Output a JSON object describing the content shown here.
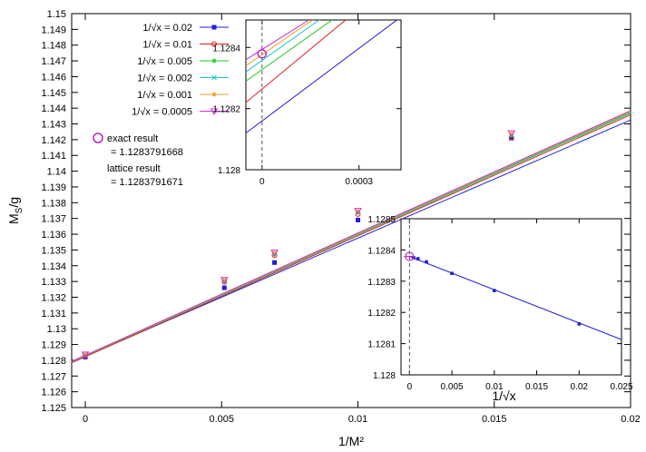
{
  "chart_data": [
    {
      "type": "line",
      "xlabel": "1/M²",
      "ylabel": "MS/g",
      "xlim": [
        -0.0005,
        0.02
      ],
      "ylim": [
        1.125,
        1.15
      ],
      "xticks": [
        0,
        0.005,
        0.01,
        0.015,
        0.02
      ],
      "xtick_labels": [
        "0",
        "0.005",
        "0.01",
        "0.015",
        "0.02"
      ],
      "yticks": [
        1.125,
        1.126,
        1.127,
        1.128,
        1.129,
        1.13,
        1.131,
        1.132,
        1.133,
        1.134,
        1.135,
        1.136,
        1.137,
        1.138,
        1.139,
        1.14,
        1.141,
        1.142,
        1.143,
        1.144,
        1.145,
        1.146,
        1.147,
        1.148,
        1.149,
        1.15
      ],
      "ytick_labels": [
        "1.125",
        "1.126",
        "1.127",
        "1.128",
        "1.129",
        "1.13",
        "1.131",
        "1.132",
        "1.133",
        "1.134",
        "1.135",
        "1.136",
        "1.137",
        "1.138",
        "1.139",
        "1.14",
        "1.141",
        "1.142",
        "1.143",
        "1.144",
        "1.145",
        "1.146",
        "1.147",
        "1.148",
        "1.149",
        "1.15"
      ],
      "legend_position": "top-left",
      "series": [
        {
          "name": "1/√x = 0.02",
          "color": "#1f1fd6",
          "marker": "square",
          "x": [
            0,
            0.0051,
            0.00694,
            0.01,
            0.01563
          ],
          "y": [
            1.1282,
            1.1326,
            1.1342,
            1.1369,
            1.1421
          ],
          "line_x": [
            -0.0005,
            0.02
          ],
          "line_y": [
            1.12788,
            1.14325
          ]
        },
        {
          "name": "1/√x = 0.01",
          "color": "#e01c1c",
          "marker": "circle",
          "x": [
            0,
            0.0051,
            0.00694,
            0.01,
            0.01563
          ],
          "y": [
            1.12827,
            1.13297,
            1.13467,
            1.13728,
            1.14213
          ],
          "line_x": [
            -0.0005,
            0.02
          ],
          "line_y": [
            1.12784,
            1.14358
          ]
        },
        {
          "name": "1/√x = 0.005",
          "color": "#1ec91e",
          "marker": "star",
          "x": [
            0,
            0.0051,
            0.00694,
            0.01,
            0.01563
          ],
          "y": [
            1.12832,
            1.133,
            1.13472,
            1.13737,
            1.14225
          ],
          "line_x": [
            -0.0005,
            0.02
          ],
          "line_y": [
            1.12789,
            1.14368
          ]
        },
        {
          "name": "1/√x = 0.002",
          "color": "#17c8d0",
          "marker": "x",
          "x": [
            0,
            0.0051,
            0.00694,
            0.01,
            0.01563
          ],
          "y": [
            1.12835,
            1.13305,
            1.13477,
            1.13742,
            1.14232
          ],
          "line_x": [
            -0.0005,
            0.02
          ],
          "line_y": [
            1.12791,
            1.14374
          ]
        },
        {
          "name": "1/√x = 0.001",
          "color": "#f0a020",
          "marker": "star",
          "x": [
            0,
            0.0051,
            0.00694,
            0.01,
            0.01563
          ],
          "y": [
            1.12836,
            1.13308,
            1.1348,
            1.13745,
            1.14236
          ],
          "line_x": [
            -0.0005,
            0.02
          ],
          "line_y": [
            1.12792,
            1.14379
          ]
        },
        {
          "name": "1/√x = 0.0005",
          "color": "#d030d0",
          "marker": "triangle-down",
          "x": [
            0,
            0.0051,
            0.00694,
            0.01,
            0.01563
          ],
          "y": [
            1.12838,
            1.13311,
            1.13484,
            1.13749,
            1.14242
          ],
          "line_x": [
            -0.0005,
            0.02
          ],
          "line_y": [
            1.12793,
            1.14384
          ]
        }
      ],
      "exact_point": {
        "x": 0,
        "y": 1.1283791668,
        "color": "#c020c0",
        "marker": "open-circle"
      },
      "annotations": [
        {
          "label": "exact result",
          "value": "= 1.1283791668"
        },
        {
          "label": "lattice result",
          "value": "= 1.1283791671"
        }
      ]
    },
    {
      "type": "line",
      "role": "inset-zoom",
      "xlim": [
        -5e-05,
        0.00043
      ],
      "ylim": [
        1.128,
        1.12849
      ],
      "xticks": [
        0,
        0.0003
      ],
      "xtick_labels": [
        "0",
        "0.0003"
      ],
      "yticks": [
        1.128,
        1.1282,
        1.1284
      ],
      "ytick_labels": [
        "1.128",
        "1.1282",
        "1.1284"
      ],
      "series": [
        {
          "name": "1/√x = 0.02",
          "color": "#1f1fd6",
          "line_x": [
            -5e-05,
            0.00043
          ],
          "line_y": [
            1.12812,
            1.1285
          ]
        },
        {
          "name": "1/√x = 0.01",
          "color": "#e01c1c",
          "line_x": [
            -5e-05,
            0.00027
          ],
          "line_y": [
            1.12822,
            1.1285
          ]
        },
        {
          "name": "1/√x = 0.005",
          "color": "#1ec91e",
          "line_x": [
            -5e-05,
            0.00023
          ],
          "line_y": [
            1.12829,
            1.1285
          ]
        },
        {
          "name": "1/√x = 0.002",
          "color": "#17c8d0",
          "line_x": [
            -5e-05,
            0.00019
          ],
          "line_y": [
            1.12832,
            1.1285
          ]
        },
        {
          "name": "1/√x = 0.001",
          "color": "#f0a020",
          "line_x": [
            -5e-05,
            0.00017
          ],
          "line_y": [
            1.12834,
            1.1285
          ]
        },
        {
          "name": "1/√x = 0.0005",
          "color": "#d030d0",
          "line_x": [
            -5e-05,
            0.00016
          ],
          "line_y": [
            1.12836,
            1.1285
          ]
        }
      ],
      "exact_point": {
        "x": 0,
        "y": 1.1283791668
      }
    },
    {
      "type": "line",
      "role": "inset-extrapolation",
      "xlabel": "1/√x",
      "xlim": [
        -0.001,
        0.025
      ],
      "ylim": [
        1.128,
        1.1285
      ],
      "xticks": [
        0,
        0.005,
        0.01,
        0.015,
        0.02,
        0.025
      ],
      "xtick_labels": [
        "0",
        "0.005",
        "0.01",
        "0.015",
        "0.02",
        "0.025"
      ],
      "yticks": [
        1.128,
        1.1281,
        1.1282,
        1.1283,
        1.1284,
        1.1285
      ],
      "ytick_labels": [
        "1.128",
        "1.1281",
        "1.1282",
        "1.1283",
        "1.1284",
        "1.1285"
      ],
      "points": {
        "color": "#1f1fd6",
        "x": [
          0.0005,
          0.001,
          0.002,
          0.005,
          0.01,
          0.02
        ],
        "y": [
          1.128375,
          1.128372,
          1.128362,
          1.128325,
          1.12827,
          1.128163
        ]
      },
      "fit_line": {
        "color": "#1f1fd6",
        "x": [
          0,
          0.025
        ],
        "y": [
          1.128379,
          1.128113
        ]
      },
      "exact_point": {
        "x": 0,
        "y": 1.1283791668,
        "color": "#c020c0"
      }
    }
  ]
}
